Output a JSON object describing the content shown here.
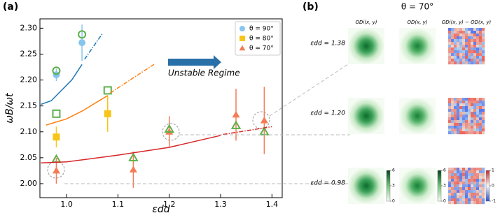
{
  "chart_data": {
    "type": "scatter",
    "panel_label": "(a)",
    "xlabel": "εdd",
    "ylabel": "ωB/ωt",
    "xlim": [
      0.948,
      1.42
    ],
    "ylim": [
      1.973,
      2.318
    ],
    "xticks": [
      {
        "value": 1,
        "label": "1.0"
      },
      1.1,
      1.2,
      1.3,
      {
        "value": 1.4,
        "label": "1.4"
      }
    ],
    "yticks": [
      {
        "value": 2,
        "label": "2.00"
      },
      2.05,
      {
        "value": 2.1,
        "label": "2.10"
      },
      2.15,
      {
        "value": 2.2,
        "label": "2.20"
      },
      2.25,
      {
        "value": 2.3,
        "label": "2.30"
      }
    ],
    "legend": "upper right",
    "annotation": "Unstable Regime",
    "series": [
      {
        "name": "θ = 90°",
        "marker": "circle",
        "filled": true,
        "color": "#86c5f0",
        "x": [
          0.98,
          1.03
        ],
        "values": [
          2.21,
          2.272
        ],
        "errors": [
          0.012,
          0.035
        ]
      },
      {
        "name": "θ = 80°",
        "marker": "square",
        "filled": true,
        "color": "#f7c51a",
        "x": [
          0.98,
          1.08
        ],
        "values": [
          2.09,
          2.135
        ],
        "errors": [
          0.02,
          0.035
        ]
      },
      {
        "name": "θ = 70°",
        "marker": "triangle",
        "filled": true,
        "color": "#f47c55",
        "x": [
          0.98,
          1.13,
          1.2,
          1.33,
          1.385
        ],
        "values": [
          2.025,
          2.027,
          2.1,
          2.133,
          2.122
        ],
        "errors": [
          0.025,
          0.035,
          0.03,
          0.05,
          0.065
        ]
      },
      {
        "marker": "circle",
        "filled": false,
        "color": "#5cb04a",
        "x": [
          0.98,
          1.03
        ],
        "values": [
          2.218,
          2.288
        ]
      },
      {
        "marker": "square",
        "filled": false,
        "color": "#5cb04a",
        "x": [
          0.98,
          1.08
        ],
        "values": [
          2.135,
          2.18
        ]
      },
      {
        "marker": "triangle",
        "filled": false,
        "color": "#5cb04a",
        "x": [
          0.98,
          1.13,
          1.2,
          1.33,
          1.385
        ],
        "values": [
          2.047,
          2.05,
          2.105,
          2.112,
          2.1
        ]
      },
      {
        "marker": "line",
        "style": "solid",
        "color": "#1f77b4",
        "x": [
          0.95,
          0.97,
          0.99,
          1.01,
          1.03
        ],
        "values": [
          2.153,
          2.16,
          2.18,
          2.2,
          2.23
        ]
      },
      {
        "marker": "line",
        "style": "dashdot",
        "color": "#1f77b4",
        "x": [
          1.035,
          1.07
        ],
        "values": [
          2.24,
          2.29
        ]
      },
      {
        "marker": "line",
        "style": "solid",
        "color": "#ff7f0e",
        "x": [
          0.96,
          1.0,
          1.03,
          1.08
        ],
        "values": [
          2.113,
          2.125,
          2.14,
          2.17
        ]
      },
      {
        "marker": "line",
        "style": "dashdot",
        "color": "#ff7f0e",
        "x": [
          1.085,
          1.17
        ],
        "values": [
          2.175,
          2.23
        ]
      },
      {
        "marker": "line",
        "style": "solid",
        "color": "#d62728",
        "x": [
          0.95,
          1.0,
          1.1,
          1.2,
          1.3
        ],
        "values": [
          2.04,
          2.042,
          2.055,
          2.07,
          2.093
        ]
      },
      {
        "marker": "line",
        "style": "dashdot",
        "color": "#d62728",
        "x": [
          1.305,
          1.4
        ],
        "values": [
          2.095,
          2.11
        ]
      }
    ]
  },
  "panel_b": {
    "label": "(b)",
    "title": "θ = 70°",
    "columns": [
      "ODi(x, y)",
      "OD(x, y)",
      "ODi(x, y) − OD(x, y)"
    ],
    "rows": [
      "εdd = 1.38",
      "εdd = 1.20",
      "εdd = 0.98"
    ],
    "colorbars": [
      {
        "ticks": [
          6,
          3,
          0
        ]
      },
      {
        "ticks": [
          6,
          3,
          0
        ]
      },
      {
        "ticks": [
          1,
          0,
          -1
        ]
      }
    ]
  }
}
